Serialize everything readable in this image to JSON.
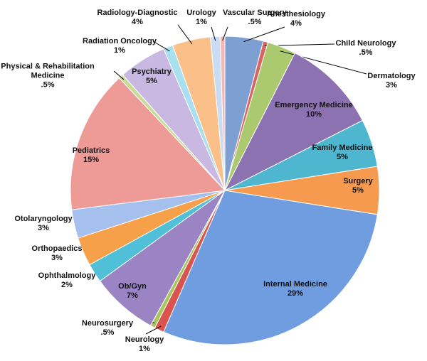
{
  "chart_data": {
    "type": "pie",
    "categories": [
      "Anesthesiology",
      "Child Neurology",
      "Dermatology",
      "Emergency Medicine",
      "Family Medicine",
      "Surgery",
      "Internal Medicine",
      "Neurology",
      "Neurosurgery",
      "Ob/Gyn",
      "Ophthalmology",
      "Orthopaedics",
      "Otolaryngology",
      "Pediatrics",
      "Physical & Rehabilitation Medicine",
      "Psychiatry",
      "Radiation Oncology",
      "Radiology-Diagnostic",
      "Urology",
      "Vascular Surgery"
    ],
    "values": [
      4,
      0.5,
      3,
      10,
      5,
      5,
      29,
      1,
      0.5,
      7,
      2,
      3,
      3,
      15,
      0.5,
      5,
      1,
      4,
      1,
      0.5
    ],
    "value_labels": [
      "4%",
      ".5%",
      "3%",
      "10%",
      "5%",
      "5%",
      "29%",
      "1%",
      ".5%",
      "7%",
      "2%",
      "3%",
      "3%",
      "15%",
      ".5%",
      "5%",
      "1%",
      "4%",
      "1%",
      ".5%"
    ],
    "colors": [
      "#7d9fd2",
      "#d9645f",
      "#abc96e",
      "#8c72b0",
      "#4eb7cf",
      "#f59a4f",
      "#6f9de0",
      "#d9534f",
      "#a6c75a",
      "#9a84c4",
      "#4fc0d8",
      "#f7a04a",
      "#a5c0ec",
      "#ee9b98",
      "#c8dc9a",
      "#c9b8e2",
      "#a8e0ef",
      "#fbc08a",
      "#cadcf3",
      "#f3b8b6"
    ]
  }
}
